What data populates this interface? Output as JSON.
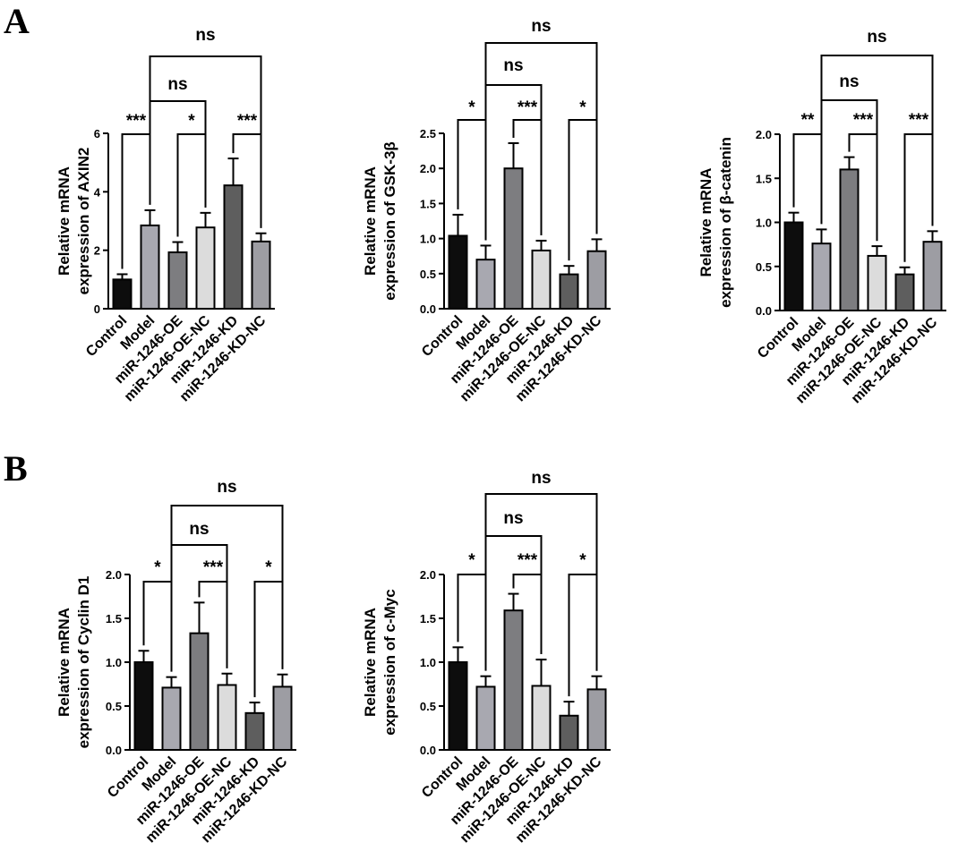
{
  "panels": {
    "a": "A",
    "b": "B"
  },
  "categories": [
    "Control",
    "Model",
    "miR-1246-OE",
    "miR-1246-OE-NC",
    "miR-1246-KD",
    "miR-1246-KD-NC"
  ],
  "colors": {
    "bars": [
      "#0d0d0d",
      "#a8a8b0",
      "#7d7d80",
      "#dcdcdc",
      "#5e5e5e",
      "#9d9da3"
    ],
    "stroke": "#000000"
  },
  "chart_data": [
    {
      "type": "bar",
      "panel": "A",
      "ylabel": [
        "Relative mRNA",
        "expression of AXIN2"
      ],
      "ylim": [
        0,
        6
      ],
      "yticks": [
        "0",
        "2",
        "4",
        "6"
      ],
      "categories": [
        "Control",
        "Model",
        "miR-1246-OE",
        "miR-1246-OE-NC",
        "miR-1246-KD",
        "miR-1246-KD-NC"
      ],
      "values": [
        1.0,
        2.85,
        1.93,
        2.78,
        4.22,
        2.3
      ],
      "errors": [
        0.18,
        0.52,
        0.35,
        0.5,
        0.92,
        0.28
      ],
      "significance": [
        {
          "from": 0,
          "to": 1,
          "label": "***"
        },
        {
          "from": 2,
          "to": 3,
          "label": "*"
        },
        {
          "from": 4,
          "to": 5,
          "label": "***"
        },
        {
          "from": 1,
          "to": 3,
          "label": "ns"
        },
        {
          "from": 1,
          "to": 5,
          "label": "ns"
        }
      ]
    },
    {
      "type": "bar",
      "panel": "A",
      "ylabel": [
        "Relative mRNA",
        "expression of GSK-3β"
      ],
      "ylim": [
        0,
        2.5
      ],
      "yticks": [
        "0.0",
        "0.5",
        "1.0",
        "1.5",
        "2.0",
        "2.5"
      ],
      "categories": [
        "Control",
        "Model",
        "miR-1246-OE",
        "miR-1246-OE-NC",
        "miR-1246-KD",
        "miR-1246-KD-NC"
      ],
      "values": [
        1.04,
        0.7,
        2.0,
        0.83,
        0.49,
        0.82
      ],
      "errors": [
        0.3,
        0.2,
        0.36,
        0.14,
        0.12,
        0.17
      ],
      "significance": [
        {
          "from": 0,
          "to": 1,
          "label": "*"
        },
        {
          "from": 2,
          "to": 3,
          "label": "***"
        },
        {
          "from": 4,
          "to": 5,
          "label": "*"
        },
        {
          "from": 1,
          "to": 3,
          "label": "ns"
        },
        {
          "from": 1,
          "to": 5,
          "label": "ns"
        }
      ]
    },
    {
      "type": "bar",
      "panel": "A",
      "ylabel": [
        "Relative mRNA",
        "expression of β-catenin"
      ],
      "ylim": [
        0,
        2.0
      ],
      "yticks": [
        "0.0",
        "0.5",
        "1.0",
        "1.5",
        "2.0"
      ],
      "categories": [
        "Control",
        "Model",
        "miR-1246-OE",
        "miR-1246-OE-NC",
        "miR-1246-KD",
        "miR-1246-KD-NC"
      ],
      "values": [
        1.0,
        0.76,
        1.6,
        0.62,
        0.41,
        0.78
      ],
      "errors": [
        0.11,
        0.16,
        0.14,
        0.11,
        0.08,
        0.12
      ],
      "significance": [
        {
          "from": 0,
          "to": 1,
          "label": "**"
        },
        {
          "from": 2,
          "to": 3,
          "label": "***"
        },
        {
          "from": 4,
          "to": 5,
          "label": "***"
        },
        {
          "from": 1,
          "to": 3,
          "label": "ns"
        },
        {
          "from": 1,
          "to": 5,
          "label": "ns"
        }
      ]
    },
    {
      "type": "bar",
      "panel": "B",
      "ylabel": [
        "Relative mRNA",
        "expression of Cyclin D1"
      ],
      "ylim": [
        0,
        2.0
      ],
      "yticks": [
        "0.0",
        "0.5",
        "1.0",
        "1.5",
        "2.0"
      ],
      "categories": [
        "Control",
        "Model",
        "miR-1246-OE",
        "miR-1246-OE-NC",
        "miR-1246-KD",
        "miR-1246-KD-NC"
      ],
      "values": [
        1.0,
        0.71,
        1.33,
        0.74,
        0.42,
        0.72
      ],
      "errors": [
        0.13,
        0.12,
        0.35,
        0.13,
        0.12,
        0.14
      ],
      "significance": [
        {
          "from": 0,
          "to": 1,
          "label": "*"
        },
        {
          "from": 2,
          "to": 3,
          "label": "***"
        },
        {
          "from": 4,
          "to": 5,
          "label": "*"
        },
        {
          "from": 1,
          "to": 3,
          "label": "ns"
        },
        {
          "from": 1,
          "to": 5,
          "label": "ns"
        }
      ]
    },
    {
      "type": "bar",
      "panel": "B",
      "ylabel": [
        "Relative mRNA",
        "expression of c-Myc"
      ],
      "ylim": [
        0,
        2.0
      ],
      "yticks": [
        "0.0",
        "0.5",
        "1.0",
        "1.5",
        "2.0"
      ],
      "categories": [
        "Control",
        "Model",
        "miR-1246-OE",
        "miR-1246-OE-NC",
        "miR-1246-KD",
        "miR-1246-KD-NC"
      ],
      "values": [
        1.0,
        0.72,
        1.59,
        0.73,
        0.39,
        0.69
      ],
      "errors": [
        0.17,
        0.12,
        0.19,
        0.3,
        0.16,
        0.15
      ],
      "significance": [
        {
          "from": 0,
          "to": 1,
          "label": "*"
        },
        {
          "from": 2,
          "to": 3,
          "label": "***"
        },
        {
          "from": 4,
          "to": 5,
          "label": "*"
        },
        {
          "from": 1,
          "to": 3,
          "label": "ns"
        },
        {
          "from": 1,
          "to": 5,
          "label": "ns"
        }
      ]
    }
  ]
}
